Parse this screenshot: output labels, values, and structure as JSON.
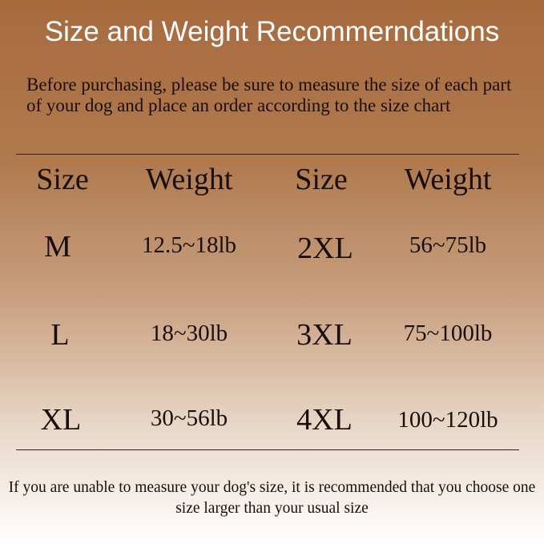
{
  "title": "Size and Weight Recommerndations",
  "intro": "Before purchasing, please be sure to measure the size of each part of your dog and place an order according to the size chart",
  "table": {
    "headers": [
      "Size",
      "Weight",
      "Size",
      "Weight"
    ],
    "rows": [
      {
        "size_a": "M",
        "weight_a": "12.5~18lb",
        "size_b": "2XL",
        "weight_b": "56~75lb"
      },
      {
        "size_a": "L",
        "weight_a": "18~30lb",
        "size_b": "3XL",
        "weight_b": "75~100lb"
      },
      {
        "size_a": "XL",
        "weight_a": "30~56lb",
        "size_b": "4XL",
        "weight_b": "100~120lb"
      }
    ]
  },
  "footer": "If you are unable to measure your dog's size, it is recommended that you choose one size larger than your usual size",
  "colors": {
    "background_top": "#a76a3d",
    "background_bottom": "#ffffff",
    "title": "#ffffff",
    "text": "#1a0f08"
  }
}
